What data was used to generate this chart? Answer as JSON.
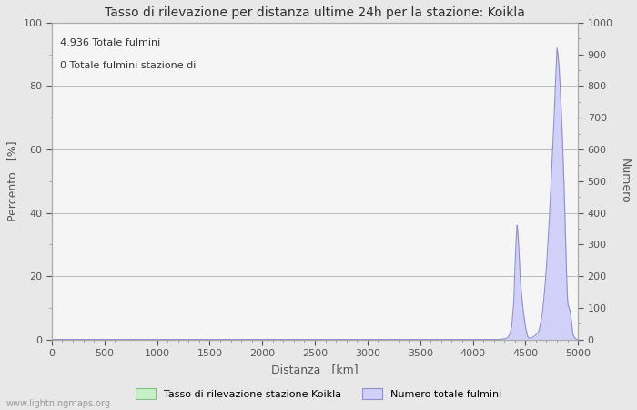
{
  "title": "Tasso di rilevazione per distanza ultime 24h per la stazione: Koikla",
  "xlabel": "Distanza   [km]",
  "ylabel_left": "Percento   [%]",
  "ylabel_right": "Numero",
  "annotation_line1": "4.936 Totale fulmini",
  "annotation_line2": "0 Totale fulmini stazione di",
  "watermark": "www.lightningmaps.org",
  "legend_label1": "Tasso di rilevazione stazione Koikla",
  "legend_label2": "Numero totale fulmini",
  "xlim": [
    0,
    5000
  ],
  "ylim_left": [
    0,
    100
  ],
  "ylim_right": [
    0,
    1000
  ],
  "xticks": [
    0,
    500,
    1000,
    1500,
    2000,
    2500,
    3000,
    3500,
    4000,
    4500,
    5000
  ],
  "yticks_left": [
    0,
    20,
    40,
    60,
    80,
    100
  ],
  "yticks_right": [
    0,
    100,
    200,
    300,
    400,
    500,
    600,
    700,
    800,
    900,
    1000
  ],
  "background_color": "#e8e8e8",
  "plot_bg_color": "#f5f5f5",
  "grid_color": "#bbbbbb",
  "fill_color_blue": "#d0d0f8",
  "line_color_blue": "#9090c8",
  "fill_color_green": "#c8f0c8",
  "line_color_green": "#80c080",
  "figsize": [
    7.0,
    4.5
  ],
  "dpi": 100
}
